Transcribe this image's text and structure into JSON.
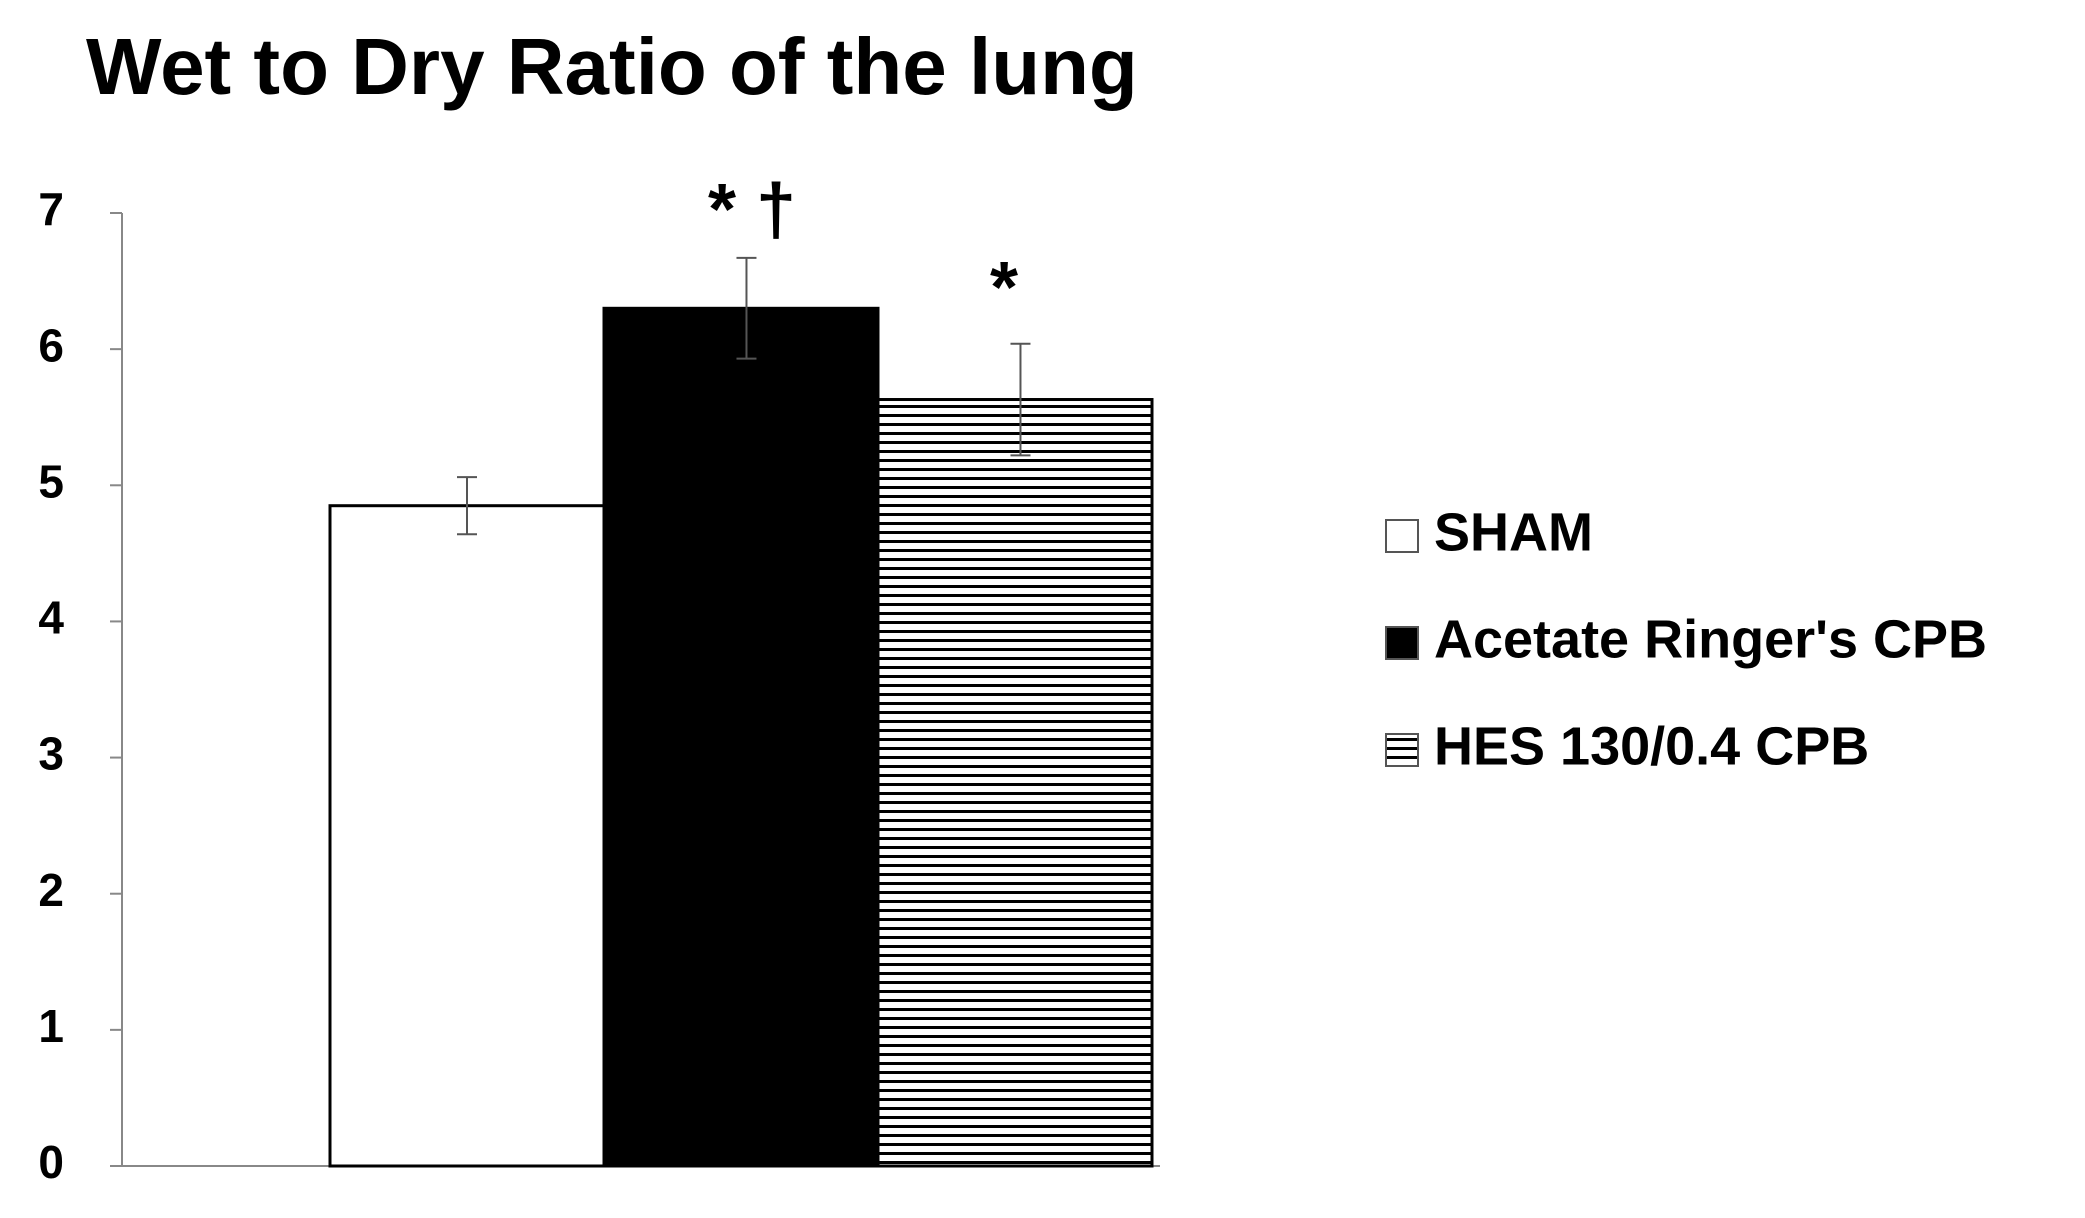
{
  "chart_data": {
    "type": "bar",
    "title": "Wet to Dry Ratio of the lung",
    "series": [
      {
        "name": "SHAM",
        "color": "#ffffff",
        "values": [
          4.85
        ],
        "errors": [
          0.21
        ]
      },
      {
        "name": "Acetate Ringer's CPB",
        "color": "#000000",
        "values": [
          6.3
        ],
        "errors": [
          0.37
        ]
      },
      {
        "name": "HES 130/0.4 CPB",
        "color": "#ffffff",
        "pattern": "horizontal-lines",
        "values": [
          5.63
        ],
        "errors": [
          0.41
        ]
      }
    ],
    "annotations": [
      "* †",
      "*"
    ],
    "ylim": [
      0,
      7
    ],
    "yticks": [
      0,
      1,
      2,
      3,
      4,
      5,
      6,
      7
    ],
    "grid": false,
    "legend": "right"
  }
}
